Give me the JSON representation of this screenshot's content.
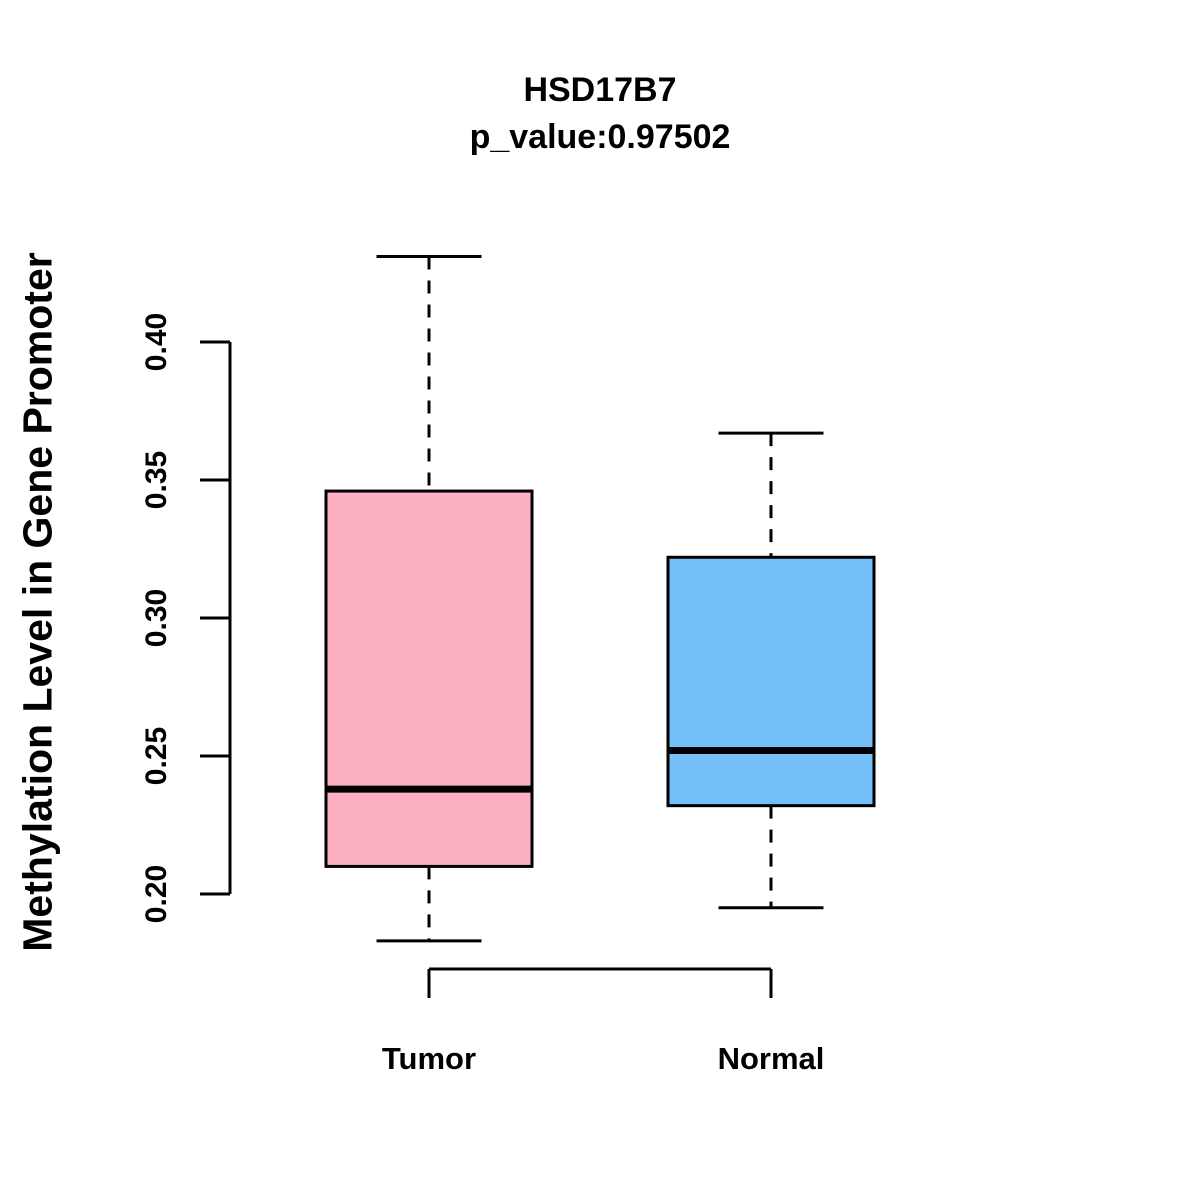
{
  "title": "HSD17B7",
  "subtitle": "p_value:0.97502",
  "y_axis_label": "Methylation Level in Gene Promoter",
  "chart_data": {
    "type": "boxplot",
    "title": "HSD17B7",
    "subtitle": "p_value:0.97502",
    "p_value": "0.97502",
    "gene": "HSD17B7",
    "ylabel": "Methylation Level in Gene Promoter",
    "xlabel": "",
    "categories": [
      "Tumor",
      "Normal"
    ],
    "series": [
      {
        "name": "Tumor",
        "color": "#FDB0C1",
        "min": 0.183,
        "q1": 0.21,
        "median": 0.238,
        "q3": 0.346,
        "max": 0.431
      },
      {
        "name": "Normal",
        "color": "#74BFF7",
        "min": 0.195,
        "q1": 0.232,
        "median": 0.252,
        "q3": 0.322,
        "max": 0.367
      }
    ],
    "y_ticks": [
      0.2,
      0.25,
      0.3,
      0.35,
      0.4
    ],
    "y_tick_labels": [
      "0.20",
      "0.25",
      "0.30",
      "0.35",
      "0.40"
    ],
    "axis_tick_range": [
      0.2,
      0.4
    ],
    "grid": false,
    "legend": "none",
    "outline_color": "#000000",
    "background_color": "#FFFFFF"
  }
}
